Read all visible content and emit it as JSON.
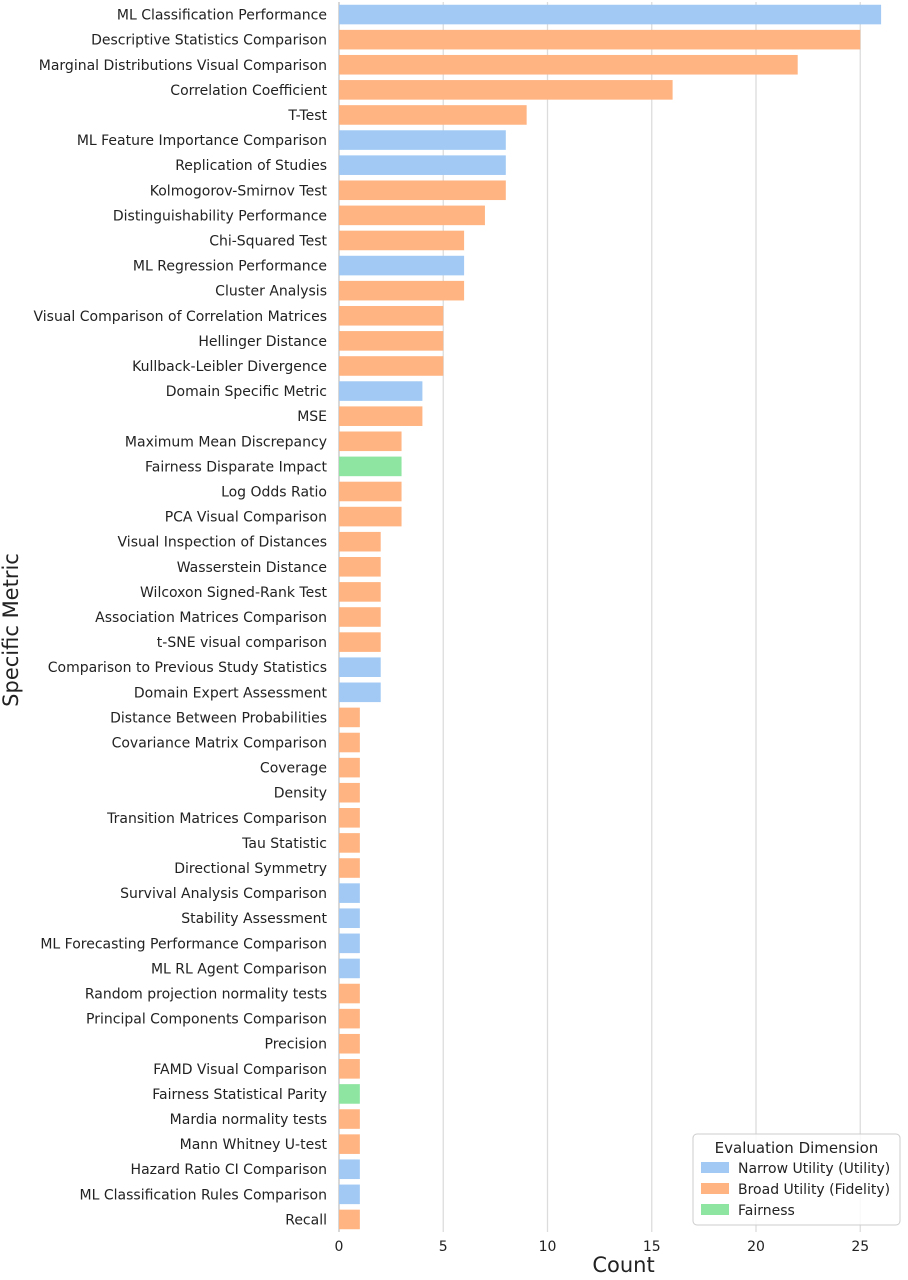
{
  "chart_data": {
    "type": "bar",
    "orientation": "horizontal",
    "xlabel": "Count",
    "ylabel": "Specific Metric",
    "xlim": [
      0,
      27
    ],
    "x_ticks": [
      0,
      5,
      10,
      15,
      20,
      25
    ],
    "grid": "vertical",
    "legend": {
      "title": "Evaluation Dimension",
      "placement": "bottom-right",
      "entries": [
        {
          "key": "utility",
          "label": "Narrow Utility (Utility)",
          "color": "#a1c9f4"
        },
        {
          "key": "fidelity",
          "label": "Broad Utility (Fidelity)",
          "color": "#ffb482"
        },
        {
          "key": "fairness",
          "label": "Fairness",
          "color": "#8de5a1"
        }
      ]
    },
    "bars": [
      {
        "label": "ML Classification Performance",
        "value": 26,
        "group": "utility"
      },
      {
        "label": "Descriptive Statistics Comparison",
        "value": 25,
        "group": "fidelity"
      },
      {
        "label": "Marginal Distributions Visual Comparison",
        "value": 22,
        "group": "fidelity"
      },
      {
        "label": "Correlation Coefficient",
        "value": 16,
        "group": "fidelity"
      },
      {
        "label": "T-Test",
        "value": 9,
        "group": "fidelity"
      },
      {
        "label": "ML Feature Importance Comparison",
        "value": 8,
        "group": "utility"
      },
      {
        "label": "Replication of Studies",
        "value": 8,
        "group": "utility"
      },
      {
        "label": "Kolmogorov-Smirnov Test",
        "value": 8,
        "group": "fidelity"
      },
      {
        "label": "Distinguishability Performance",
        "value": 7,
        "group": "fidelity"
      },
      {
        "label": "Chi-Squared Test",
        "value": 6,
        "group": "fidelity"
      },
      {
        "label": "ML Regression Performance",
        "value": 6,
        "group": "utility"
      },
      {
        "label": "Cluster Analysis",
        "value": 6,
        "group": "fidelity"
      },
      {
        "label": "Visual Comparison of Correlation Matrices",
        "value": 5,
        "group": "fidelity"
      },
      {
        "label": "Hellinger Distance",
        "value": 5,
        "group": "fidelity"
      },
      {
        "label": "Kullback-Leibler Divergence",
        "value": 5,
        "group": "fidelity"
      },
      {
        "label": "Domain Specific Metric",
        "value": 4,
        "group": "utility"
      },
      {
        "label": "MSE",
        "value": 4,
        "group": "fidelity"
      },
      {
        "label": "Maximum Mean Discrepancy",
        "value": 3,
        "group": "fidelity"
      },
      {
        "label": "Fairness Disparate Impact",
        "value": 3,
        "group": "fairness"
      },
      {
        "label": "Log Odds Ratio",
        "value": 3,
        "group": "fidelity"
      },
      {
        "label": "PCA Visual Comparison",
        "value": 3,
        "group": "fidelity"
      },
      {
        "label": "Visual Inspection of Distances",
        "value": 2,
        "group": "fidelity"
      },
      {
        "label": "Wasserstein Distance",
        "value": 2,
        "group": "fidelity"
      },
      {
        "label": "Wilcoxon Signed-Rank Test",
        "value": 2,
        "group": "fidelity"
      },
      {
        "label": "Association Matrices Comparison",
        "value": 2,
        "group": "fidelity"
      },
      {
        "label": "t-SNE visual comparison",
        "value": 2,
        "group": "fidelity"
      },
      {
        "label": "Comparison to Previous Study Statistics",
        "value": 2,
        "group": "utility"
      },
      {
        "label": "Domain Expert Assessment",
        "value": 2,
        "group": "utility"
      },
      {
        "label": "Distance Between Probabilities",
        "value": 1,
        "group": "fidelity"
      },
      {
        "label": "Covariance Matrix Comparison",
        "value": 1,
        "group": "fidelity"
      },
      {
        "label": "Coverage",
        "value": 1,
        "group": "fidelity"
      },
      {
        "label": "Density",
        "value": 1,
        "group": "fidelity"
      },
      {
        "label": "Transition Matrices Comparison",
        "value": 1,
        "group": "fidelity"
      },
      {
        "label": "Tau Statistic",
        "value": 1,
        "group": "fidelity"
      },
      {
        "label": "Directional Symmetry",
        "value": 1,
        "group": "fidelity"
      },
      {
        "label": "Survival Analysis Comparison",
        "value": 1,
        "group": "utility"
      },
      {
        "label": "Stability Assessment",
        "value": 1,
        "group": "utility"
      },
      {
        "label": "ML Forecasting Performance Comparison",
        "value": 1,
        "group": "utility"
      },
      {
        "label": "ML RL Agent Comparison",
        "value": 1,
        "group": "utility"
      },
      {
        "label": "Random projection normality tests",
        "value": 1,
        "group": "fidelity"
      },
      {
        "label": "Principal Components Comparison",
        "value": 1,
        "group": "fidelity"
      },
      {
        "label": "Precision",
        "value": 1,
        "group": "fidelity"
      },
      {
        "label": "FAMD Visual Comparison",
        "value": 1,
        "group": "fidelity"
      },
      {
        "label": "Fairness Statistical Parity",
        "value": 1,
        "group": "fairness"
      },
      {
        "label": "Mardia normality tests",
        "value": 1,
        "group": "fidelity"
      },
      {
        "label": "Mann Whitney U-test",
        "value": 1,
        "group": "fidelity"
      },
      {
        "label": "Hazard Ratio CI Comparison",
        "value": 1,
        "group": "utility"
      },
      {
        "label": "ML Classification Rules Comparison",
        "value": 1,
        "group": "utility"
      },
      {
        "label": "Recall",
        "value": 1,
        "group": "fidelity"
      }
    ]
  },
  "colors": {
    "grid": "#dcdcdc",
    "axis": "#bbbbbb",
    "text": "#222222",
    "legend_border": "#cccccc"
  }
}
